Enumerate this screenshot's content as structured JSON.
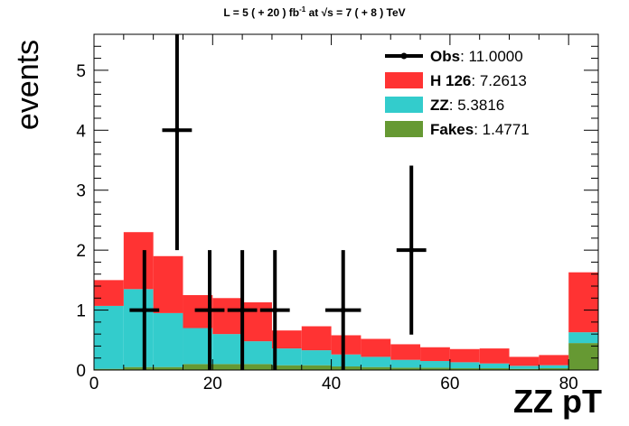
{
  "title": {
    "prefix": "L = 5 ( + 20 ) fb",
    "sup": "-1",
    "middle": " at √s = 7 ( + 8 ) TeV"
  },
  "chart_data": {
    "type": "bar",
    "stacked": true,
    "xlabel": "ZZ pT",
    "ylabel": "events",
    "xlim": [
      0,
      85
    ],
    "ylim": [
      0,
      5.6
    ],
    "x_ticks": [
      0,
      20,
      40,
      60,
      80
    ],
    "y_ticks": [
      0,
      1,
      2,
      3,
      4,
      5
    ],
    "bin_edges": [
      0,
      5,
      10,
      15,
      20,
      25,
      30,
      35,
      40,
      45,
      50,
      55,
      60,
      65,
      70,
      75,
      80,
      85
    ],
    "series": [
      {
        "name": "Fakes",
        "color": "#669933",
        "values": [
          0.02,
          0.05,
          0.05,
          0.1,
          0.1,
          0.1,
          0.08,
          0.08,
          0.06,
          0.05,
          0.04,
          0.04,
          0.03,
          0.03,
          0.02,
          0.03,
          0.45
        ]
      },
      {
        "name": "ZZ",
        "color": "#33cccc",
        "values": [
          1.05,
          1.3,
          0.9,
          0.6,
          0.5,
          0.38,
          0.28,
          0.25,
          0.2,
          0.17,
          0.13,
          0.11,
          0.1,
          0.08,
          0.05,
          0.05,
          0.18
        ]
      },
      {
        "name": "H 126",
        "color": "#ff3333",
        "values": [
          0.43,
          0.95,
          0.95,
          0.55,
          0.6,
          0.65,
          0.3,
          0.4,
          0.32,
          0.3,
          0.26,
          0.23,
          0.22,
          0.25,
          0.15,
          0.17,
          1.0
        ]
      }
    ],
    "observed": [
      {
        "x": 8.5,
        "xerr": 2.5,
        "y": 1,
        "yerr": 1
      },
      {
        "x": 14,
        "xerr": 2.5,
        "y": 4,
        "yerr": 2
      },
      {
        "x": 19.5,
        "xerr": 2.5,
        "y": 1,
        "yerr": 1
      },
      {
        "x": 25,
        "xerr": 2.5,
        "y": 1,
        "yerr": 1
      },
      {
        "x": 30.5,
        "xerr": 2.5,
        "y": 1,
        "yerr": 1
      },
      {
        "x": 42,
        "xerr": 3,
        "y": 1,
        "yerr": 1
      },
      {
        "x": 53.5,
        "xerr": 2.5,
        "y": 2,
        "yerr": 1.41
      }
    ],
    "legend": [
      {
        "name": "Obs",
        "value": ": 11.0000",
        "marker": "line",
        "color": "#000000"
      },
      {
        "name": "H 126",
        "value": ": 7.2613",
        "marker": "box",
        "color": "#ff3333"
      },
      {
        "name": "ZZ",
        "value": ": 5.3816",
        "marker": "box",
        "color": "#33cccc"
      },
      {
        "name": "Fakes",
        "value": ": 1.4771",
        "marker": "box",
        "color": "#669933"
      }
    ],
    "legend_position": "top-right",
    "grid": false
  }
}
